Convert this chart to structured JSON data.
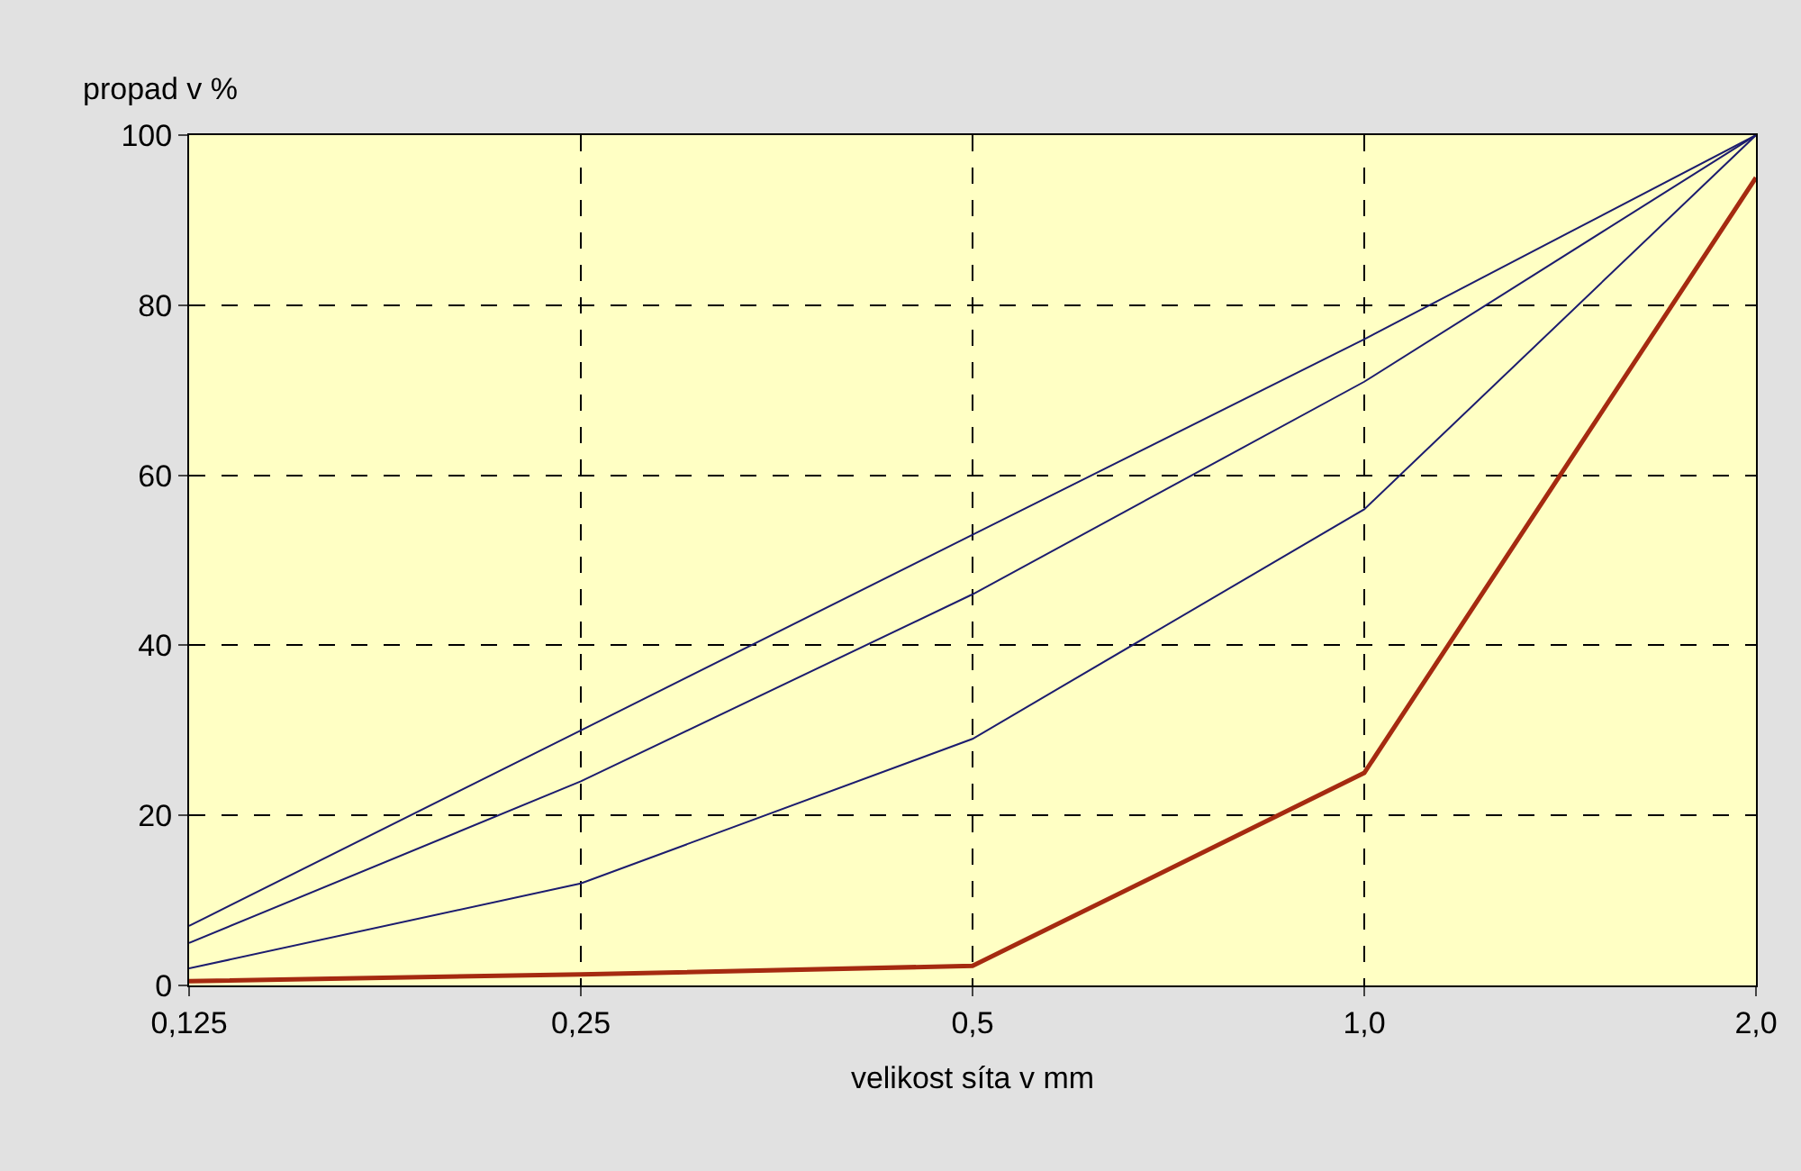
{
  "chart_data": {
    "type": "line",
    "ylabel": "propad v %",
    "xlabel": "velikost síta v mm",
    "x": [
      0.125,
      0.25,
      0.5,
      1.0,
      2.0
    ],
    "series": [
      {
        "color": "#1c1c6e",
        "values": [
          7,
          30,
          53,
          76,
          100
        ]
      },
      {
        "color": "#1c1c6e",
        "values": [
          5,
          24,
          46,
          71,
          100
        ]
      },
      {
        "color": "#1c1c6e",
        "values": [
          2,
          12,
          29,
          56,
          100
        ]
      },
      {
        "color": "#a52a10",
        "values": [
          0.5,
          1.3,
          2.3,
          25,
          95
        ]
      }
    ],
    "log": "x",
    "xlim": [
      0.125,
      2.0
    ],
    "xticks": [
      {
        "value": 0.125,
        "label": "0,125"
      },
      {
        "value": 0.25,
        "label": "0,25"
      },
      {
        "value": 0.5,
        "label": "0,5"
      },
      {
        "value": 1.0,
        "label": "1,0"
      },
      {
        "value": 2.0,
        "label": "2,0"
      }
    ],
    "ylim": [
      0,
      100
    ],
    "yticks": [
      0,
      20,
      40,
      60,
      80,
      100
    ],
    "grid": true,
    "marker": "none",
    "line_style": "solid"
  }
}
